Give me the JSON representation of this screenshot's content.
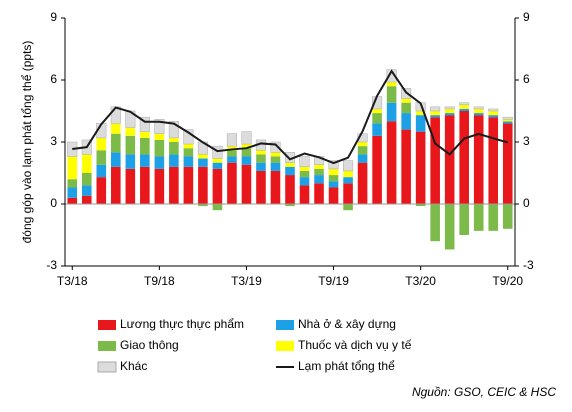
{
  "chart_data": {
    "type": "bar",
    "y_label": "đóng góp vào lạm phát tổng thể (ppts)",
    "source": "Nguồn: GSO, CEIC & HSC",
    "categories": [
      "T3/18",
      null,
      null,
      null,
      null,
      null,
      "T9/18",
      null,
      null,
      null,
      null,
      null,
      "T3/19",
      null,
      null,
      null,
      null,
      null,
      "T9/19",
      null,
      null,
      null,
      null,
      null,
      "T3/20",
      null,
      null,
      null,
      null,
      null,
      "T9/20"
    ],
    "ylim": [
      -3,
      9
    ],
    "yticks": [
      -3,
      0,
      3,
      6,
      9
    ],
    "series": [
      {
        "name": "Lương thực thực phẩm",
        "kind": "bar",
        "color": "#e8171b",
        "values": [
          0.3,
          0.4,
          1.3,
          1.8,
          1.7,
          1.8,
          1.7,
          1.8,
          1.8,
          1.8,
          1.7,
          2.0,
          1.9,
          1.6,
          1.6,
          1.4,
          0.9,
          1.0,
          0.8,
          1.0,
          2.0,
          3.3,
          4.0,
          3.6,
          3.5,
          4.2,
          4.3,
          4.5,
          4.3,
          4.2,
          3.9
        ]
      },
      {
        "name": "Nhà ở & xây dựng",
        "kind": "bar",
        "color": "#1ea0e6",
        "values": [
          0.5,
          0.5,
          0.6,
          0.7,
          0.7,
          0.6,
          0.6,
          0.6,
          0.5,
          0.4,
          0.3,
          0.3,
          0.4,
          0.4,
          0.4,
          0.4,
          0.4,
          0.4,
          0.3,
          0.3,
          0.4,
          0.6,
          0.9,
          0.8,
          0.8,
          0.1,
          0.1,
          0.1,
          0.1,
          0.1,
          0.1
        ]
      },
      {
        "name": "Giao thông",
        "kind": "bar",
        "color": "#7cbb4a",
        "values": [
          0.4,
          0.6,
          0.7,
          0.9,
          0.9,
          0.8,
          0.8,
          0.6,
          0.4,
          -0.1,
          -0.3,
          0.3,
          0.4,
          0.4,
          0.3,
          -0.1,
          0.3,
          0.3,
          0.3,
          -0.3,
          0.4,
          0.5,
          0.8,
          0.5,
          -0.1,
          -1.8,
          -2.2,
          -1.5,
          -1.3,
          -1.3,
          -1.2
        ]
      },
      {
        "name": "Thuốc và dịch vụ y tế",
        "kind": "bar",
        "color": "#ffff00",
        "values": [
          1.1,
          0.9,
          0.6,
          0.5,
          0.4,
          0.3,
          0.3,
          0.2,
          0.2,
          0.2,
          0.2,
          0.2,
          0.2,
          0.2,
          0.2,
          0.2,
          0.2,
          0.2,
          0.3,
          0.3,
          0.2,
          0.2,
          0.2,
          0.2,
          0.2,
          0.2,
          0.2,
          0.2,
          0.2,
          0.2,
          0.1
        ]
      },
      {
        "name": "Khác",
        "kind": "bar",
        "color": "#dcdcdc",
        "values": [
          0.7,
          0.7,
          0.7,
          0.8,
          0.8,
          0.7,
          0.7,
          0.8,
          0.7,
          0.6,
          0.6,
          0.6,
          0.6,
          0.5,
          0.5,
          0.5,
          0.5,
          0.4,
          0.4,
          0.5,
          0.4,
          0.6,
          0.6,
          0.5,
          0.4,
          0.2,
          0.1,
          0.1,
          0.1,
          0.1,
          0.1
        ]
      },
      {
        "name": "Lạm phát tổng thể",
        "kind": "line",
        "color": "#1a1a1a",
        "values": [
          2.66,
          2.75,
          3.86,
          4.67,
          4.46,
          3.98,
          3.98,
          3.89,
          3.46,
          2.98,
          2.56,
          2.64,
          2.7,
          2.93,
          2.88,
          2.16,
          2.44,
          2.26,
          1.98,
          2.24,
          3.52,
          5.23,
          6.43,
          5.4,
          4.87,
          2.93,
          2.4,
          3.17,
          3.39,
          3.18,
          2.98
        ]
      }
    ]
  }
}
